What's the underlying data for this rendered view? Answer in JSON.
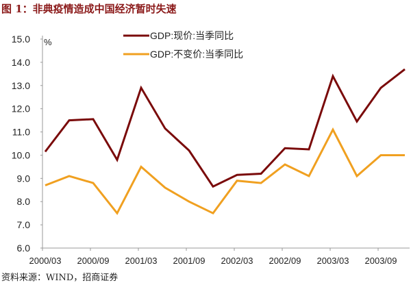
{
  "title": "图 1：非典疫情造成中国经济暂时失速",
  "source": "资料来源：WIND，招商证券",
  "chart_data": {
    "type": "line",
    "ylabel": "%",
    "ylim": [
      6.0,
      15.0
    ],
    "yticks": [
      "6.0",
      "7.0",
      "8.0",
      "9.0",
      "10.0",
      "11.0",
      "12.0",
      "13.0",
      "14.0",
      "15.0"
    ],
    "x": [
      "2000/03",
      "2000/06",
      "2000/09",
      "2000/12",
      "2001/03",
      "2001/06",
      "2001/09",
      "2001/12",
      "2002/03",
      "2002/06",
      "2002/09",
      "2002/12",
      "2003/03",
      "2003/06",
      "2003/09",
      "2003/12"
    ],
    "xtick_labels": [
      "2000/03",
      "2000/09",
      "2001/03",
      "2001/09",
      "2002/03",
      "2002/09",
      "2003/03",
      "2003/09"
    ],
    "grid": false,
    "legend_position": "top-center",
    "series": [
      {
        "name": "GDP:现价:当季同比",
        "color": "#7a0a0a",
        "values": [
          10.15,
          11.5,
          11.55,
          9.8,
          12.9,
          11.15,
          10.2,
          8.65,
          9.15,
          9.2,
          10.3,
          10.25,
          13.4,
          11.45,
          12.9,
          13.7
        ]
      },
      {
        "name": "GDP:不变价:当季同比",
        "color": "#f0a020",
        "values": [
          8.7,
          9.1,
          8.8,
          7.5,
          9.5,
          8.6,
          8.0,
          7.5,
          8.9,
          8.8,
          9.6,
          9.1,
          11.1,
          9.1,
          10.0,
          10.0
        ]
      }
    ]
  }
}
